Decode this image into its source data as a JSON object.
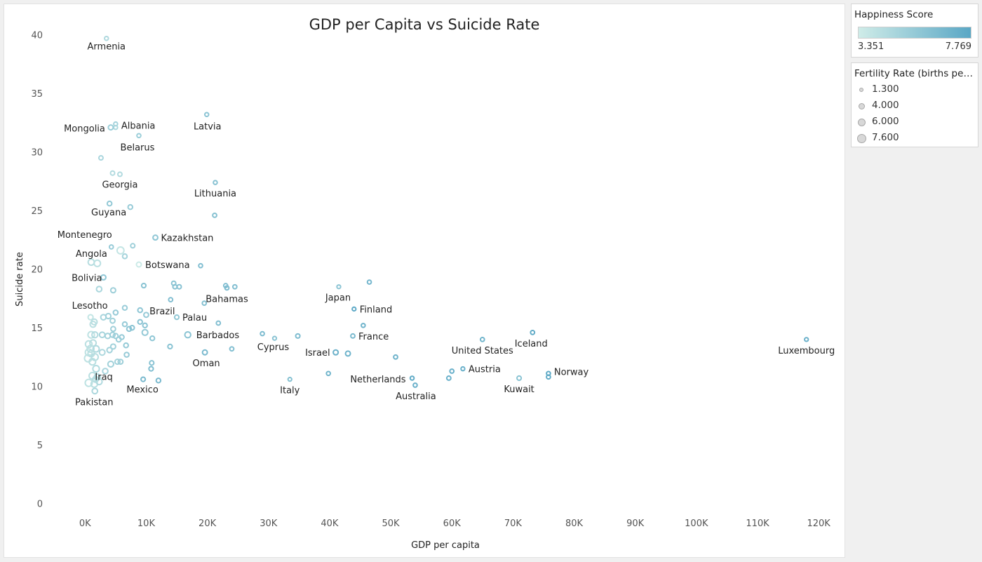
{
  "chart_data": {
    "type": "scatter",
    "title": "GDP per Capita vs Suicide Rate",
    "xlabel": "GDP per capita",
    "ylabel": "Suicide rate",
    "xlim": [
      -6000,
      124000
    ],
    "ylim": [
      -0.5,
      41
    ],
    "x_ticks": [
      0,
      10000,
      20000,
      30000,
      40000,
      50000,
      60000,
      70000,
      80000,
      90000,
      100000,
      110000,
      120000
    ],
    "x_tick_labels": [
      "0K",
      "10K",
      "20K",
      "30K",
      "40K",
      "50K",
      "60K",
      "70K",
      "80K",
      "90K",
      "100K",
      "110K",
      "120K"
    ],
    "y_ticks": [
      0,
      5,
      10,
      15,
      20,
      25,
      30,
      35,
      40
    ],
    "y_tick_labels": [
      "0",
      "5",
      "10",
      "15",
      "20",
      "25",
      "30",
      "35",
      "40"
    ],
    "points": [
      {
        "label": "Armenia",
        "gdp": 3500,
        "suicide": 39.7,
        "happiness": 4.6,
        "fertility": 1.6
      },
      {
        "label": "",
        "gdp": 5000,
        "suicide": 32.4,
        "happiness": 5.0,
        "fertility": 1.6
      },
      {
        "label": "Albania",
        "gdp": 5000,
        "suicide": 32.1,
        "happiness": 4.7,
        "fertility": 1.6
      },
      {
        "label": "Mongolia",
        "gdp": 4200,
        "suicide": 32.1,
        "happiness": 5.3,
        "fertility": 2.9
      },
      {
        "label": "Latvia",
        "gdp": 19900,
        "suicide": 33.2,
        "happiness": 5.9,
        "fertility": 1.6
      },
      {
        "label": "Belarus",
        "gdp": 8800,
        "suicide": 31.4,
        "happiness": 5.3,
        "fertility": 1.7
      },
      {
        "label": "",
        "gdp": 2600,
        "suicide": 29.5,
        "happiness": 4.8,
        "fertility": 2.0
      },
      {
        "label": "",
        "gdp": 4500,
        "suicide": 28.2,
        "happiness": 4.5,
        "fertility": 2.0
      },
      {
        "label": "Georgia",
        "gdp": 5700,
        "suicide": 28.1,
        "happiness": 4.5,
        "fertility": 2.0
      },
      {
        "label": "Lithuania",
        "gdp": 21300,
        "suicide": 27.4,
        "happiness": 6.1,
        "fertility": 1.6
      },
      {
        "label": "Guyana",
        "gdp": 4000,
        "suicide": 25.6,
        "happiness": 5.6,
        "fertility": 2.5
      },
      {
        "label": "",
        "gdp": 7400,
        "suicide": 25.3,
        "happiness": 5.4,
        "fertility": 2.5
      },
      {
        "label": "",
        "gdp": 21200,
        "suicide": 24.6,
        "happiness": 6.2,
        "fertility": 1.8
      },
      {
        "label": "Kazakhstan",
        "gdp": 11500,
        "suicide": 22.7,
        "happiness": 5.8,
        "fertility": 2.8
      },
      {
        "label": "Montenegro",
        "gdp": 4300,
        "suicide": 21.9,
        "happiness": 5.5,
        "fertility": 1.7
      },
      {
        "label": "Angola",
        "gdp": 5800,
        "suicide": 21.6,
        "happiness": 3.8,
        "fertility": 5.5
      },
      {
        "label": "",
        "gdp": 6500,
        "suicide": 21.1,
        "happiness": 4.9,
        "fertility": 2.5
      },
      {
        "label": "",
        "gdp": 7800,
        "suicide": 22.0,
        "happiness": 5.2,
        "fertility": 2.0
      },
      {
        "label": "",
        "gdp": 1000,
        "suicide": 20.6,
        "happiness": 4.3,
        "fertility": 4.5
      },
      {
        "label": "",
        "gdp": 2000,
        "suicide": 20.5,
        "happiness": 4.1,
        "fertility": 4.8
      },
      {
        "label": "Botswana",
        "gdp": 8800,
        "suicide": 20.4,
        "happiness": 3.5,
        "fertility": 2.9
      },
      {
        "label": "",
        "gdp": 18900,
        "suicide": 20.3,
        "happiness": 6.3,
        "fertility": 1.7
      },
      {
        "label": "Bolivia",
        "gdp": 3000,
        "suicide": 19.3,
        "happiness": 5.8,
        "fertility": 3.0
      },
      {
        "label": "",
        "gdp": 14500,
        "suicide": 18.8,
        "happiness": 6.0,
        "fertility": 2.0
      },
      {
        "label": "",
        "gdp": 15400,
        "suicide": 18.5,
        "happiness": 6.1,
        "fertility": 2.0
      },
      {
        "label": "",
        "gdp": 14700,
        "suicide": 18.5,
        "happiness": 6.1,
        "fertility": 1.9
      },
      {
        "label": "",
        "gdp": 9600,
        "suicide": 18.6,
        "happiness": 6.0,
        "fertility": 2.2
      },
      {
        "label": "",
        "gdp": 23000,
        "suicide": 18.6,
        "happiness": 6.3,
        "fertility": 1.8
      },
      {
        "label": "Bahamas",
        "gdp": 23200,
        "suicide": 18.4,
        "happiness": 6.5,
        "fertility": 1.8
      },
      {
        "label": "",
        "gdp": 24500,
        "suicide": 18.5,
        "happiness": 6.3,
        "fertility": 1.8
      },
      {
        "label": "",
        "gdp": 2300,
        "suicide": 18.3,
        "happiness": 4.7,
        "fertility": 3.5
      },
      {
        "label": "",
        "gdp": 4600,
        "suicide": 18.2,
        "happiness": 5.2,
        "fertility": 3.0
      },
      {
        "label": "Brazil",
        "gdp": 14000,
        "suicide": 17.4,
        "happiness": 6.3,
        "fertility": 1.8
      },
      {
        "label": "Japan",
        "gdp": 41500,
        "suicide": 18.5,
        "happiness": 5.9,
        "fertility": 1.4
      },
      {
        "label": "",
        "gdp": 46500,
        "suicide": 18.9,
        "happiness": 6.8,
        "fertility": 1.7
      },
      {
        "label": "",
        "gdp": 19500,
        "suicide": 17.1,
        "happiness": 6.2,
        "fertility": 1.8
      },
      {
        "label": "Lesotho",
        "gdp": 900,
        "suicide": 15.9,
        "happiness": 3.8,
        "fertility": 3.1
      },
      {
        "label": "",
        "gdp": 6500,
        "suicide": 16.7,
        "happiness": 5.4,
        "fertility": 2.5
      },
      {
        "label": "Finland",
        "gdp": 44000,
        "suicide": 16.6,
        "happiness": 7.7,
        "fertility": 1.4
      },
      {
        "label": "",
        "gdp": 9000,
        "suicide": 16.5,
        "happiness": 5.8,
        "fertility": 2.5
      },
      {
        "label": "",
        "gdp": 5000,
        "suicide": 16.3,
        "happiness": 5.5,
        "fertility": 2.6
      },
      {
        "label": "",
        "gdp": 10000,
        "suicide": 16.1,
        "happiness": 5.5,
        "fertility": 2.8
      },
      {
        "label": "Palau",
        "gdp": 15000,
        "suicide": 15.9,
        "happiness": 5.7,
        "fertility": 2.2
      },
      {
        "label": "",
        "gdp": 3000,
        "suicide": 15.9,
        "happiness": 4.9,
        "fertility": 3.5
      },
      {
        "label": "",
        "gdp": 3800,
        "suicide": 16.0,
        "happiness": 5.1,
        "fertility": 3.2
      },
      {
        "label": "",
        "gdp": 1500,
        "suicide": 15.5,
        "happiness": 4.3,
        "fertility": 4.0
      },
      {
        "label": "",
        "gdp": 1300,
        "suicide": 15.3,
        "happiness": 4.2,
        "fertility": 4.2
      },
      {
        "label": "",
        "gdp": 4500,
        "suicide": 15.6,
        "happiness": 5.1,
        "fertility": 2.8
      },
      {
        "label": "",
        "gdp": 6500,
        "suicide": 15.3,
        "happiness": 5.5,
        "fertility": 2.5
      },
      {
        "label": "",
        "gdp": 9000,
        "suicide": 15.5,
        "happiness": 6.0,
        "fertility": 2.4
      },
      {
        "label": "",
        "gdp": 9800,
        "suicide": 15.2,
        "happiness": 5.9,
        "fertility": 2.3
      },
      {
        "label": "",
        "gdp": 21800,
        "suicide": 15.4,
        "happiness": 6.3,
        "fertility": 1.8
      },
      {
        "label": "",
        "gdp": 7200,
        "suicide": 14.9,
        "happiness": 5.9,
        "fertility": 2.6
      },
      {
        "label": "",
        "gdp": 7700,
        "suicide": 15.0,
        "happiness": 6.0,
        "fertility": 2.3
      },
      {
        "label": "",
        "gdp": 4600,
        "suicide": 14.9,
        "happiness": 5.2,
        "fertility": 2.8
      },
      {
        "label": "",
        "gdp": 45500,
        "suicide": 15.2,
        "happiness": 7.0,
        "fertility": 1.6
      },
      {
        "label": "",
        "gdp": 1000,
        "suicide": 14.4,
        "happiness": 4.0,
        "fertility": 5.0
      },
      {
        "label": "",
        "gdp": 1600,
        "suicide": 14.4,
        "happiness": 4.5,
        "fertility": 4.2
      },
      {
        "label": "",
        "gdp": 2800,
        "suicide": 14.4,
        "happiness": 4.9,
        "fertility": 3.6
      },
      {
        "label": "",
        "gdp": 3700,
        "suicide": 14.3,
        "happiness": 5.0,
        "fertility": 3.3
      },
      {
        "label": "",
        "gdp": 4500,
        "suicide": 14.4,
        "happiness": 5.2,
        "fertility": 3.0
      },
      {
        "label": "",
        "gdp": 5000,
        "suicide": 14.3,
        "happiness": 5.3,
        "fertility": 2.9
      },
      {
        "label": "",
        "gdp": 6000,
        "suicide": 14.2,
        "happiness": 5.5,
        "fertility": 2.5
      },
      {
        "label": "",
        "gdp": 5500,
        "suicide": 14.0,
        "happiness": 5.3,
        "fertility": 2.8
      },
      {
        "label": "",
        "gdp": 9800,
        "suicide": 14.6,
        "happiness": 5.6,
        "fertility": 4.0
      },
      {
        "label": "",
        "gdp": 11000,
        "suicide": 14.1,
        "happiness": 5.8,
        "fertility": 2.4
      },
      {
        "label": "Barbados",
        "gdp": 16800,
        "suicide": 14.4,
        "happiness": 6.0,
        "fertility": 4.2
      },
      {
        "label": "",
        "gdp": 29000,
        "suicide": 14.5,
        "happiness": 6.5,
        "fertility": 1.7
      },
      {
        "label": "",
        "gdp": 34800,
        "suicide": 14.3,
        "happiness": 6.4,
        "fertility": 2.1
      },
      {
        "label": "Cyprus",
        "gdp": 31000,
        "suicide": 14.1,
        "happiness": 6.0,
        "fertility": 1.4
      },
      {
        "label": "France",
        "gdp": 43800,
        "suicide": 14.3,
        "happiness": 6.6,
        "fertility": 1.9
      },
      {
        "label": "United States",
        "gdp": 65000,
        "suicide": 14.0,
        "happiness": 6.9,
        "fertility": 1.7
      },
      {
        "label": "Iceland",
        "gdp": 73200,
        "suicide": 14.6,
        "happiness": 7.5,
        "fertility": 1.8
      },
      {
        "label": "Luxembourg",
        "gdp": 118000,
        "suicide": 14.0,
        "happiness": 7.1,
        "fertility": 1.4
      },
      {
        "label": "",
        "gdp": 600,
        "suicide": 13.6,
        "happiness": 4.1,
        "fertility": 5.2
      },
      {
        "label": "",
        "gdp": 1300,
        "suicide": 13.7,
        "happiness": 4.3,
        "fertility": 4.7
      },
      {
        "label": "",
        "gdp": 900,
        "suicide": 13.2,
        "happiness": 4.1,
        "fertility": 5.5
      },
      {
        "label": "",
        "gdp": 1800,
        "suicide": 13.2,
        "happiness": 4.5,
        "fertility": 4.6
      },
      {
        "label": "",
        "gdp": 4600,
        "suicide": 13.4,
        "happiness": 5.1,
        "fertility": 3.0
      },
      {
        "label": "",
        "gdp": 6700,
        "suicide": 13.5,
        "happiness": 5.6,
        "fertility": 2.5
      },
      {
        "label": "",
        "gdp": 13900,
        "suicide": 13.4,
        "happiness": 6.0,
        "fertility": 2.3
      },
      {
        "label": "",
        "gdp": 24000,
        "suicide": 13.2,
        "happiness": 6.3,
        "fertility": 1.8
      },
      {
        "label": "",
        "gdp": 600,
        "suicide": 12.9,
        "happiness": 4.0,
        "fertility": 5.5
      },
      {
        "label": "",
        "gdp": 1000,
        "suicide": 12.8,
        "happiness": 4.2,
        "fertility": 5.0
      },
      {
        "label": "",
        "gdp": 2800,
        "suicide": 12.9,
        "happiness": 4.6,
        "fertility": 3.8
      },
      {
        "label": "",
        "gdp": 4000,
        "suicide": 13.1,
        "happiness": 5.0,
        "fertility": 3.3
      },
      {
        "label": "",
        "gdp": 6800,
        "suicide": 12.7,
        "happiness": 5.5,
        "fertility": 2.6
      },
      {
        "label": "Oman",
        "gdp": 19600,
        "suicide": 12.9,
        "happiness": 6.6,
        "fertility": 2.9
      },
      {
        "label": "Israel",
        "gdp": 41000,
        "suicide": 12.9,
        "happiness": 7.1,
        "fertility": 3.0
      },
      {
        "label": "",
        "gdp": 43000,
        "suicide": 12.8,
        "happiness": 7.0,
        "fertility": 2.9
      },
      {
        "label": "",
        "gdp": 50800,
        "suicide": 12.5,
        "happiness": 7.0,
        "fertility": 1.8
      },
      {
        "label": "",
        "gdp": 500,
        "suicide": 12.4,
        "happiness": 4.0,
        "fertility": 6.0
      },
      {
        "label": "",
        "gdp": 1600,
        "suicide": 12.5,
        "happiness": 4.3,
        "fertility": 5.3
      },
      {
        "label": "",
        "gdp": 1200,
        "suicide": 12.1,
        "happiness": 4.2,
        "fertility": 5.0
      },
      {
        "label": "",
        "gdp": 5300,
        "suicide": 12.1,
        "happiness": 5.0,
        "fertility": 3.0
      },
      {
        "label": "",
        "gdp": 5800,
        "suicide": 12.1,
        "happiness": 5.2,
        "fertility": 2.7
      },
      {
        "label": "",
        "gdp": 4200,
        "suicide": 11.9,
        "happiness": 5.1,
        "fertility": 4.0
      },
      {
        "label": "",
        "gdp": 10900,
        "suicide": 12.0,
        "happiness": 6.0,
        "fertility": 2.2
      },
      {
        "label": "",
        "gdp": 1800,
        "suicide": 11.5,
        "happiness": 4.4,
        "fertility": 5.0
      },
      {
        "label": "",
        "gdp": 3300,
        "suicide": 11.3,
        "happiness": 4.8,
        "fertility": 3.5
      },
      {
        "label": "",
        "gdp": 10800,
        "suicide": 11.5,
        "happiness": 6.3,
        "fertility": 2.3
      },
      {
        "label": "",
        "gdp": 39800,
        "suicide": 11.1,
        "happiness": 6.9,
        "fertility": 1.7
      },
      {
        "label": "",
        "gdp": 60000,
        "suicide": 11.3,
        "happiness": 7.2,
        "fertility": 1.8
      },
      {
        "label": "Austria",
        "gdp": 61800,
        "suicide": 11.5,
        "happiness": 7.2,
        "fertility": 1.5
      },
      {
        "label": "Norway",
        "gdp": 75800,
        "suicide": 11.1,
        "happiness": 7.6,
        "fertility": 1.7
      },
      {
        "label": "",
        "gdp": 1200,
        "suicide": 10.9,
        "happiness": 4.2,
        "fertility": 5.2
      },
      {
        "label": "",
        "gdp": 2000,
        "suicide": 10.8,
        "happiness": 4.5,
        "fertility": 4.4
      },
      {
        "label": "",
        "gdp": 75800,
        "suicide": 10.8,
        "happiness": 7.5,
        "fertility": 1.8
      },
      {
        "label": "Iraq",
        "gdp": 1700,
        "suicide": 10.6,
        "happiness": 4.4,
        "fertility": 4.0
      },
      {
        "label": "",
        "gdp": 600,
        "suicide": 10.3,
        "happiness": 4.0,
        "fertility": 5.8
      },
      {
        "label": "",
        "gdp": 1500,
        "suicide": 10.2,
        "happiness": 4.2,
        "fertility": 5.0
      },
      {
        "label": "",
        "gdp": 2300,
        "suicide": 10.4,
        "happiness": 4.5,
        "fertility": 4.3
      },
      {
        "label": "Mexico",
        "gdp": 9500,
        "suicide": 10.6,
        "happiness": 6.6,
        "fertility": 2.2
      },
      {
        "label": "",
        "gdp": 12000,
        "suicide": 10.5,
        "happiness": 6.6,
        "fertility": 2.4
      },
      {
        "label": "Italy",
        "gdp": 33500,
        "suicide": 10.6,
        "happiness": 6.2,
        "fertility": 1.3
      },
      {
        "label": "Netherlands",
        "gdp": 53500,
        "suicide": 10.7,
        "happiness": 7.5,
        "fertility": 1.6
      },
      {
        "label": "",
        "gdp": 59500,
        "suicide": 10.7,
        "happiness": 7.2,
        "fertility": 1.9
      },
      {
        "label": "Kuwait",
        "gdp": 71000,
        "suicide": 10.7,
        "happiness": 6.0,
        "fertility": 2.1
      },
      {
        "label": "Australia",
        "gdp": 54000,
        "suicide": 10.1,
        "happiness": 7.2,
        "fertility": 1.7
      },
      {
        "label": "Pakistan",
        "gdp": 1600,
        "suicide": 9.6,
        "happiness": 4.7,
        "fertility": 3.6
      }
    ],
    "color_legend": {
      "title": "Happiness Score",
      "min": 3.351,
      "max": 7.769,
      "min_label": "3.351",
      "max_label": "7.769",
      "low_color": "#cfece8",
      "high_color": "#5aa7c5"
    },
    "size_legend": {
      "title": "Fertility Rate (births per ...",
      "entries": [
        {
          "value": 1.3,
          "label": "1.300"
        },
        {
          "value": 4.0,
          "label": "4.000"
        },
        {
          "value": 6.0,
          "label": "6.000"
        },
        {
          "value": 7.6,
          "label": "7.600"
        }
      ]
    }
  }
}
